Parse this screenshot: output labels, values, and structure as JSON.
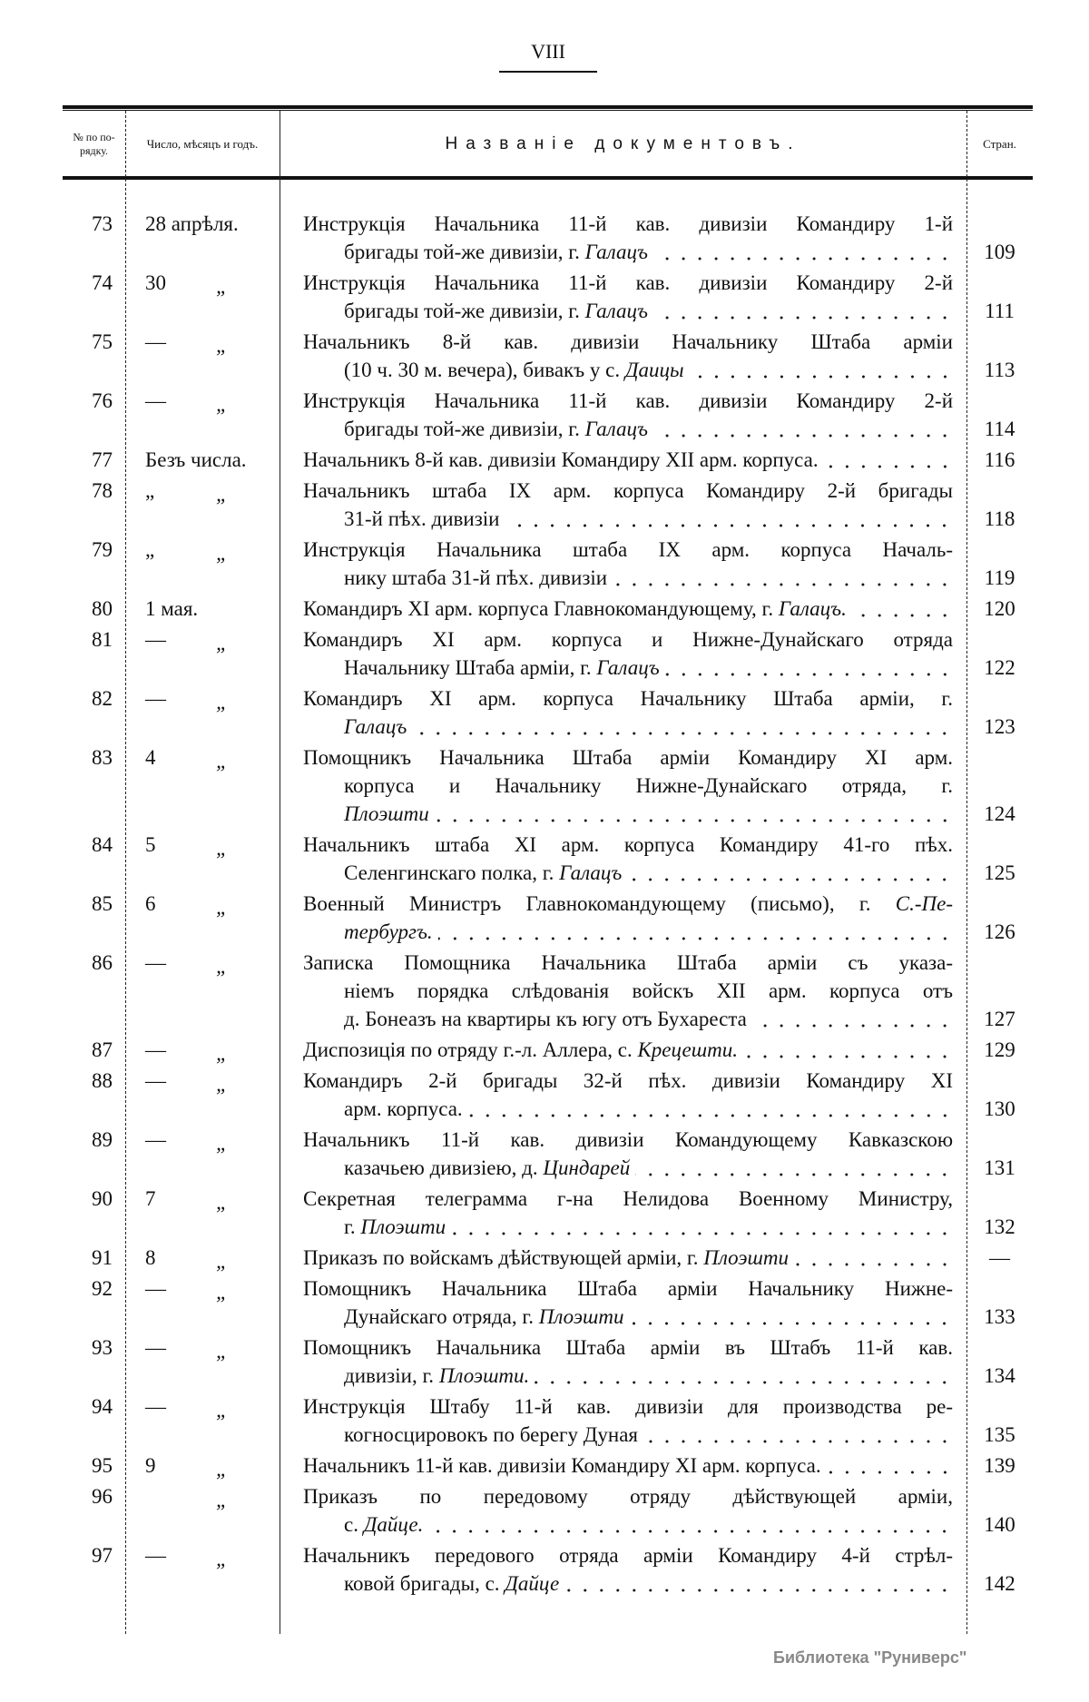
{
  "page_number": "VIII",
  "header": {
    "num": "№ по по-рядку.",
    "date": "Число, мѣсяцъ и годъ.",
    "title": "Названіе документовъ.",
    "page": "Стран."
  },
  "entries": [
    {
      "num": "73",
      "day": "28 апрѣля.",
      "mark": "",
      "lines": [
        [
          [
            "Инструкція Начальника 11-й кав. дивизіи Командиру 1-й",
            0
          ]
        ],
        [
          [
            "бригады той-же дивизіи, г. ",
            0
          ],
          [
            "Галацъ",
            1
          ]
        ]
      ],
      "page": "109"
    },
    {
      "num": "74",
      "day": "30",
      "mark": "„",
      "lines": [
        [
          [
            "Инструкція Начальника 11-й кав. дивизіи Командиру 2-й",
            0
          ]
        ],
        [
          [
            "бригады той-же дивизіи, г. ",
            0
          ],
          [
            "Галацъ",
            1
          ]
        ]
      ],
      "page": "111"
    },
    {
      "num": "75",
      "day": "—",
      "mark": "„",
      "lines": [
        [
          [
            "Начальникъ 8-й кав. дивизіи Начальнику Штаба арміи",
            0
          ]
        ],
        [
          [
            "(10 ч. 30 м. вечера), бивакъ у с. ",
            0
          ],
          [
            "Даицы",
            1
          ]
        ]
      ],
      "page": "113"
    },
    {
      "num": "76",
      "day": "—",
      "mark": "„",
      "lines": [
        [
          [
            "Инструкція Начальника 11-й кав. дивизіи Командиру 2-й",
            0
          ]
        ],
        [
          [
            "бригады той-же дивизіи, г. ",
            0
          ],
          [
            "Галацъ",
            1
          ]
        ]
      ],
      "page": "114"
    },
    {
      "num": "77",
      "day": "Безъ числа.",
      "mark": "",
      "lines": [
        [
          [
            "Начальникъ 8-й кав. дивизіи Командиру XII арм. корпуса.",
            0
          ]
        ]
      ],
      "page": "116"
    },
    {
      "num": "78",
      "day": "„",
      "mark": "„",
      "lines": [
        [
          [
            "Начальникъ штаба IX арм. корпуса Командиру 2-й бригады",
            0
          ]
        ],
        [
          [
            "31-й пѣх. дивизіи",
            0
          ]
        ]
      ],
      "page": "118"
    },
    {
      "num": "79",
      "day": "„",
      "mark": "„",
      "lines": [
        [
          [
            "Инструкція Начальника штаба IX арм. корпуса Началь-",
            0
          ]
        ],
        [
          [
            "нику штаба 31-й пѣх. дивизіи",
            0
          ]
        ]
      ],
      "page": "119"
    },
    {
      "num": "80",
      "day": "1 мая.",
      "mark": "",
      "lines": [
        [
          [
            "Командиръ XI арм. корпуса Главнокомандующему, г. ",
            0
          ],
          [
            "Галацъ.",
            1
          ]
        ]
      ],
      "page": "120"
    },
    {
      "num": "81",
      "day": "—",
      "mark": "„",
      "lines": [
        [
          [
            "Командиръ XI арм. корпуса и Нижне-Дунайскаго отряда",
            0
          ]
        ],
        [
          [
            "Начальнику Штаба арміи, г. ",
            0
          ],
          [
            "Галацъ",
            1
          ]
        ]
      ],
      "page": "122"
    },
    {
      "num": "82",
      "day": "—",
      "mark": "„",
      "lines": [
        [
          [
            "Командиръ XI арм. корпуса Начальнику Штаба арміи, г.",
            0
          ]
        ],
        [
          [
            "Галацъ",
            1
          ]
        ]
      ],
      "page": "123"
    },
    {
      "num": "83",
      "day": "4",
      "mark": "„",
      "lines": [
        [
          [
            "Помощникъ Начальника Штаба арміи Командиру XI арм.",
            0
          ]
        ],
        [
          [
            "корпуса и Начальнику Нижне-Дунайскаго отряда, г.",
            0
          ]
        ],
        [
          [
            "Плоэшти",
            1
          ]
        ]
      ],
      "page": "124"
    },
    {
      "num": "84",
      "day": "5",
      "mark": "„",
      "lines": [
        [
          [
            "Начальникъ штаба XI арм. корпуса Командиру 41-го пѣх.",
            0
          ]
        ],
        [
          [
            "Селенгинскаго полка, г. ",
            0
          ],
          [
            "Галацъ",
            1
          ]
        ]
      ],
      "page": "125"
    },
    {
      "num": "85",
      "day": "6",
      "mark": "„",
      "lines": [
        [
          [
            "Военный Министръ Главнокомандующему (письмо), г. ",
            0
          ],
          [
            "С.-Пе-",
            1
          ]
        ],
        [
          [
            "тербургъ.",
            1
          ]
        ]
      ],
      "page": "126"
    },
    {
      "num": "86",
      "day": "—",
      "mark": "„",
      "lines": [
        [
          [
            "Записка Помощника Начальника Штаба арміи съ указа-",
            0
          ]
        ],
        [
          [
            "ніемъ порядка слѣдованія войскъ XII арм. корпуса отъ",
            0
          ]
        ],
        [
          [
            "д. Бонеазъ на квартиры къ югу отъ Бухареста",
            0
          ]
        ]
      ],
      "page": "127"
    },
    {
      "num": "87",
      "day": "—",
      "mark": "„",
      "lines": [
        [
          [
            "Диспозиція по отряду г.-л. Аллера, с. ",
            0
          ],
          [
            "Крецешти.",
            1
          ]
        ]
      ],
      "page": "129"
    },
    {
      "num": "88",
      "day": "—",
      "mark": "„",
      "lines": [
        [
          [
            "Командиръ 2-й бригады 32-й пѣх. дивизіи Командиру XI",
            0
          ]
        ],
        [
          [
            "арм. корпуса.",
            0
          ]
        ]
      ],
      "page": "130"
    },
    {
      "num": "89",
      "day": "—",
      "mark": "„",
      "lines": [
        [
          [
            "Начальникъ 11-й кав. дивизіи Командующему Кавказскою",
            0
          ]
        ],
        [
          [
            "казачьею дивизіею, д. ",
            0
          ],
          [
            "Циндарей",
            1
          ]
        ]
      ],
      "page": "131"
    },
    {
      "num": "90",
      "day": "7",
      "mark": "„",
      "lines": [
        [
          [
            "Секретная телеграмма г-на Нелидова Военному Министру,",
            0
          ]
        ],
        [
          [
            "г. ",
            0
          ],
          [
            "Плоэшти",
            1
          ]
        ]
      ],
      "page": "132"
    },
    {
      "num": "91",
      "day": "8",
      "mark": "„",
      "lines": [
        [
          [
            "Приказъ по войскамъ дѣйствующей арміи, г. ",
            0
          ],
          [
            "Плоэшти",
            1
          ]
        ]
      ],
      "page": "—"
    },
    {
      "num": "92",
      "day": "—",
      "mark": "„",
      "lines": [
        [
          [
            "Помощникъ Начальника Штаба арміи Начальнику Нижне-",
            0
          ]
        ],
        [
          [
            "Дунайскаго отряда, г. ",
            0
          ],
          [
            "Плоэшти",
            1
          ]
        ]
      ],
      "page": "133"
    },
    {
      "num": "93",
      "day": "—",
      "mark": "„",
      "lines": [
        [
          [
            "Помощникъ Начальника Штаба арміи въ Штабъ 11-й кав.",
            0
          ]
        ],
        [
          [
            "дивизіи, г. ",
            0
          ],
          [
            "Плоэшти.",
            1
          ]
        ]
      ],
      "page": "134"
    },
    {
      "num": "94",
      "day": "—",
      "mark": "„",
      "lines": [
        [
          [
            "Инструкція Штабу 11-й кав. дивизіи для производства ре-",
            0
          ]
        ],
        [
          [
            "когносцировокъ по берегу Дуная",
            0
          ]
        ]
      ],
      "page": "135"
    },
    {
      "num": "95",
      "day": "9",
      "mark": "„",
      "lines": [
        [
          [
            "Начальникъ 11-й кав. дивизіи Командиру XI арм. корпуса.",
            0
          ]
        ]
      ],
      "page": "139"
    },
    {
      "num": "96",
      "day": "",
      "mark": "„",
      "lines": [
        [
          [
            "Приказъ по передовому отряду дѣйствующей арміи,",
            0
          ]
        ],
        [
          [
            "с. ",
            0
          ],
          [
            "Дайце.",
            1
          ]
        ]
      ],
      "page": "140"
    },
    {
      "num": "97",
      "day": "—",
      "mark": "„",
      "lines": [
        [
          [
            "Начальникъ передового отряда арміи Командиру 4-й стрѣл-",
            0
          ]
        ],
        [
          [
            "ковой бригады, с. ",
            0
          ],
          [
            "Дайце",
            1
          ]
        ]
      ],
      "page": "142"
    }
  ],
  "watermark": "Библиотека \"Руниверс\""
}
